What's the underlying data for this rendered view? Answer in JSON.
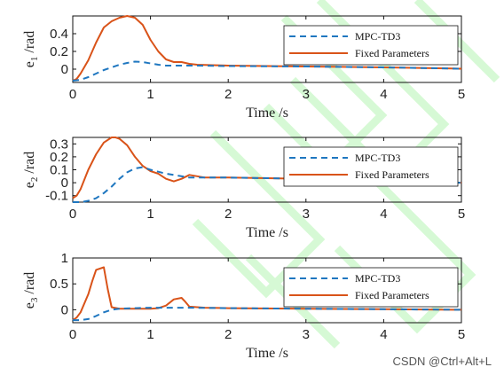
{
  "colors": {
    "series_mpc": "#1f77c0",
    "series_fixed": "#d95319",
    "watermark_pattern": "#b6f5b4"
  },
  "watermark_text": "CSDN @Ctrl+Alt+L",
  "chart_data": [
    {
      "type": "line",
      "ylabel_main": "e",
      "ylabel_sub": "1",
      "ylabel_unit": " /rad",
      "xlabel": "Time /s",
      "xlim": [
        0,
        5
      ],
      "ylim": [
        -0.15,
        0.6
      ],
      "xticks": [
        0,
        1,
        2,
        3,
        4,
        5
      ],
      "yticks": [
        0,
        0.2,
        0.4
      ],
      "ytick_labels": [
        "0",
        "0.2",
        "0.4"
      ],
      "legend": "top-right",
      "series": [
        {
          "name": "MPC-TD3",
          "style": "dashed",
          "x": [
            0,
            0.1,
            0.2,
            0.3,
            0.4,
            0.5,
            0.6,
            0.7,
            0.8,
            0.9,
            1.0,
            1.1,
            1.2,
            1.4,
            1.6,
            2.0,
            3.0,
            4.0,
            5.0
          ],
          "y": [
            -0.13,
            -0.12,
            -0.09,
            -0.05,
            -0.01,
            0.02,
            0.05,
            0.07,
            0.085,
            0.08,
            0.065,
            0.05,
            0.04,
            0.04,
            0.04,
            0.035,
            0.03,
            0.02,
            0.005
          ]
        },
        {
          "name": "Fixed Parameters",
          "style": "solid",
          "x": [
            0,
            0.05,
            0.1,
            0.2,
            0.3,
            0.4,
            0.5,
            0.6,
            0.7,
            0.8,
            0.9,
            1.0,
            1.1,
            1.2,
            1.3,
            1.4,
            1.5,
            1.6,
            1.8,
            2.0,
            3.0,
            4.0,
            5.0
          ],
          "y": [
            -0.13,
            -0.11,
            -0.05,
            0.1,
            0.3,
            0.47,
            0.54,
            0.58,
            0.6,
            0.58,
            0.5,
            0.33,
            0.2,
            0.11,
            0.08,
            0.08,
            0.06,
            0.05,
            0.045,
            0.04,
            0.03,
            0.02,
            0.005
          ]
        }
      ]
    },
    {
      "type": "line",
      "ylabel_main": "e",
      "ylabel_sub": "2",
      "ylabel_unit": " /rad",
      "xlabel": "Time /s",
      "xlim": [
        0,
        5
      ],
      "ylim": [
        -0.15,
        0.35
      ],
      "xticks": [
        0,
        1,
        2,
        3,
        4,
        5
      ],
      "yticks": [
        -0.1,
        0,
        0.1,
        0.2,
        0.3
      ],
      "ytick_labels": [
        "-0.1",
        "0",
        "0.1",
        "0.2",
        "0.3"
      ],
      "legend": "top-right",
      "series": [
        {
          "name": "MPC-TD3",
          "style": "dashed",
          "x": [
            0,
            0.1,
            0.2,
            0.3,
            0.4,
            0.5,
            0.6,
            0.7,
            0.8,
            0.9,
            1.0,
            1.2,
            1.5,
            2.0,
            3.0,
            4.0,
            5.0
          ],
          "y": [
            -0.15,
            -0.15,
            -0.14,
            -0.12,
            -0.08,
            -0.03,
            0.03,
            0.08,
            0.11,
            0.12,
            0.1,
            0.07,
            0.04,
            0.04,
            0.03,
            0.02,
            0.0
          ]
        },
        {
          "name": "Fixed Parameters",
          "style": "solid",
          "x": [
            0,
            0.05,
            0.1,
            0.2,
            0.3,
            0.4,
            0.5,
            0.55,
            0.6,
            0.7,
            0.8,
            0.9,
            1.0,
            1.1,
            1.2,
            1.3,
            1.4,
            1.5,
            1.7,
            2.0,
            3.0,
            4.0,
            5.0
          ],
          "y": [
            -0.12,
            -0.1,
            -0.05,
            0.1,
            0.22,
            0.31,
            0.35,
            0.35,
            0.34,
            0.29,
            0.2,
            0.13,
            0.09,
            0.07,
            0.03,
            0.01,
            0.03,
            0.06,
            0.04,
            0.04,
            0.03,
            0.02,
            0.0
          ]
        }
      ]
    },
    {
      "type": "line",
      "ylabel_main": "e",
      "ylabel_sub": "3",
      "ylabel_unit": " /rad",
      "xlabel": "Time /s",
      "xlim": [
        0,
        5
      ],
      "ylim": [
        -0.25,
        1.0
      ],
      "xticks": [
        0,
        1,
        2,
        3,
        4,
        5
      ],
      "yticks": [
        0,
        0.5,
        1
      ],
      "ytick_labels": [
        "0",
        "0.5",
        "1"
      ],
      "legend": "top-right",
      "series": [
        {
          "name": "MPC-TD3",
          "style": "dashed",
          "x": [
            0,
            0.1,
            0.2,
            0.3,
            0.4,
            0.5,
            0.6,
            0.8,
            1.0,
            1.5,
            2.0,
            3.0,
            4.0,
            5.0
          ],
          "y": [
            -0.2,
            -0.2,
            -0.18,
            -0.12,
            -0.05,
            0.0,
            0.02,
            0.03,
            0.04,
            0.04,
            0.03,
            0.02,
            0.01,
            0.0
          ]
        },
        {
          "name": "Fixed Parameters",
          "style": "solid",
          "x": [
            0,
            0.05,
            0.1,
            0.2,
            0.25,
            0.3,
            0.4,
            0.45,
            0.5,
            0.6,
            0.8,
            1.0,
            1.1,
            1.2,
            1.3,
            1.4,
            1.45,
            1.5,
            1.6,
            1.7,
            2.0,
            3.0,
            4.0,
            5.0
          ],
          "y": [
            -0.2,
            -0.15,
            -0.05,
            0.3,
            0.55,
            0.77,
            0.82,
            0.4,
            0.05,
            0.02,
            0.02,
            0.02,
            0.03,
            0.08,
            0.2,
            0.23,
            0.15,
            0.06,
            0.05,
            0.04,
            0.03,
            0.02,
            0.01,
            0.0
          ]
        }
      ]
    }
  ]
}
